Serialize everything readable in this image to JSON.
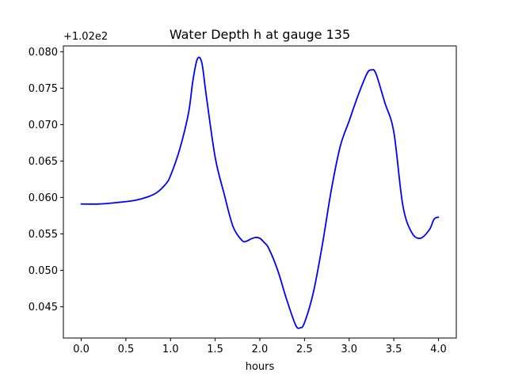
{
  "chart_data": {
    "type": "line",
    "title": "Water Depth h at gauge 135",
    "xlabel": "hours",
    "ylabel": "",
    "offset_label": "+1.02e2",
    "xlim": [
      -0.2,
      4.2
    ],
    "ylim": [
      0.0407,
      0.0808
    ],
    "x_ticks": [
      0.0,
      0.5,
      1.0,
      1.5,
      2.0,
      2.5,
      3.0,
      3.5,
      4.0
    ],
    "x_tick_labels": [
      "0.0",
      "0.5",
      "1.0",
      "1.5",
      "2.0",
      "2.5",
      "3.0",
      "3.5",
      "4.0"
    ],
    "y_ticks": [
      0.045,
      0.05,
      0.055,
      0.06,
      0.065,
      0.07,
      0.075,
      0.08
    ],
    "y_tick_labels": [
      "0.045",
      "0.050",
      "0.055",
      "0.060",
      "0.065",
      "0.070",
      "0.075",
      "0.080"
    ],
    "grid": false,
    "series": [
      {
        "color": "#0000ff",
        "x": [
          0.0,
          0.2,
          0.4,
          0.6,
          0.75,
          0.85,
          0.95,
          1.0,
          1.1,
          1.2,
          1.25,
          1.3,
          1.35,
          1.4,
          1.5,
          1.6,
          1.7,
          1.8,
          1.85,
          1.9,
          1.95,
          2.0,
          2.05,
          2.1,
          2.2,
          2.3,
          2.4,
          2.45,
          2.5,
          2.6,
          2.7,
          2.8,
          2.9,
          3.0,
          3.1,
          3.2,
          3.25,
          3.3,
          3.4,
          3.5,
          3.6,
          3.7,
          3.8,
          3.9,
          3.95,
          4.0
        ],
        "y": [
          0.0591,
          0.0591,
          0.0593,
          0.0596,
          0.0601,
          0.0607,
          0.0619,
          0.063,
          0.0665,
          0.0715,
          0.076,
          0.079,
          0.0785,
          0.074,
          0.0655,
          0.0605,
          0.056,
          0.0541,
          0.054,
          0.0543,
          0.0545,
          0.0544,
          0.0538,
          0.053,
          0.05,
          0.046,
          0.0425,
          0.0421,
          0.0428,
          0.047,
          0.0535,
          0.061,
          0.067,
          0.0705,
          0.074,
          0.077,
          0.0775,
          0.077,
          0.073,
          0.069,
          0.059,
          0.0552,
          0.0544,
          0.0556,
          0.057,
          0.0573
        ]
      }
    ]
  }
}
